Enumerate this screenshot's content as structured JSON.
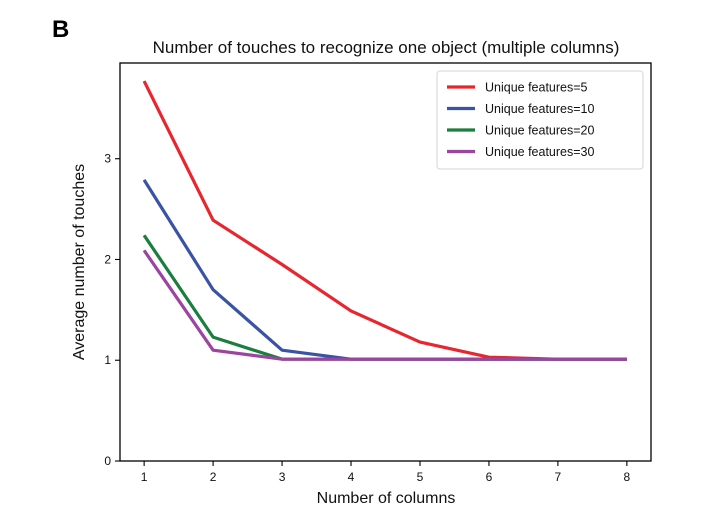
{
  "panel_label": "B",
  "chart_data": {
    "type": "line",
    "title": "Number of touches to recognize one object (multiple columns)",
    "xlabel": "Number of columns",
    "ylabel": "Average number of touches",
    "x": [
      1,
      2,
      3,
      4,
      5,
      6,
      7,
      8
    ],
    "x_ticks": [
      1,
      2,
      3,
      4,
      5,
      6,
      7,
      8
    ],
    "y_ticks": [
      0,
      1,
      2,
      3
    ],
    "xlim": [
      0.65,
      8.35
    ],
    "ylim": [
      0,
      3.95
    ],
    "grid": false,
    "legend_position": "top-right",
    "series": [
      {
        "name": "Unique features=5",
        "color": "#e8262f",
        "values": [
          3.77,
          2.39,
          1.95,
          1.49,
          1.18,
          1.03,
          1.01,
          1.01
        ]
      },
      {
        "name": "Unique features=10",
        "color": "#3a53a4",
        "values": [
          2.79,
          1.7,
          1.1,
          1.01,
          1.01,
          1.01,
          1.01,
          1.01
        ]
      },
      {
        "name": "Unique features=20",
        "color": "#1b7e3e",
        "values": [
          2.24,
          1.23,
          1.01,
          1.01,
          1.01,
          1.01,
          1.01,
          1.01
        ]
      },
      {
        "name": "Unique features=30",
        "color": "#9b44a0",
        "values": [
          2.09,
          1.1,
          1.01,
          1.01,
          1.01,
          1.01,
          1.01,
          1.01
        ]
      }
    ]
  }
}
